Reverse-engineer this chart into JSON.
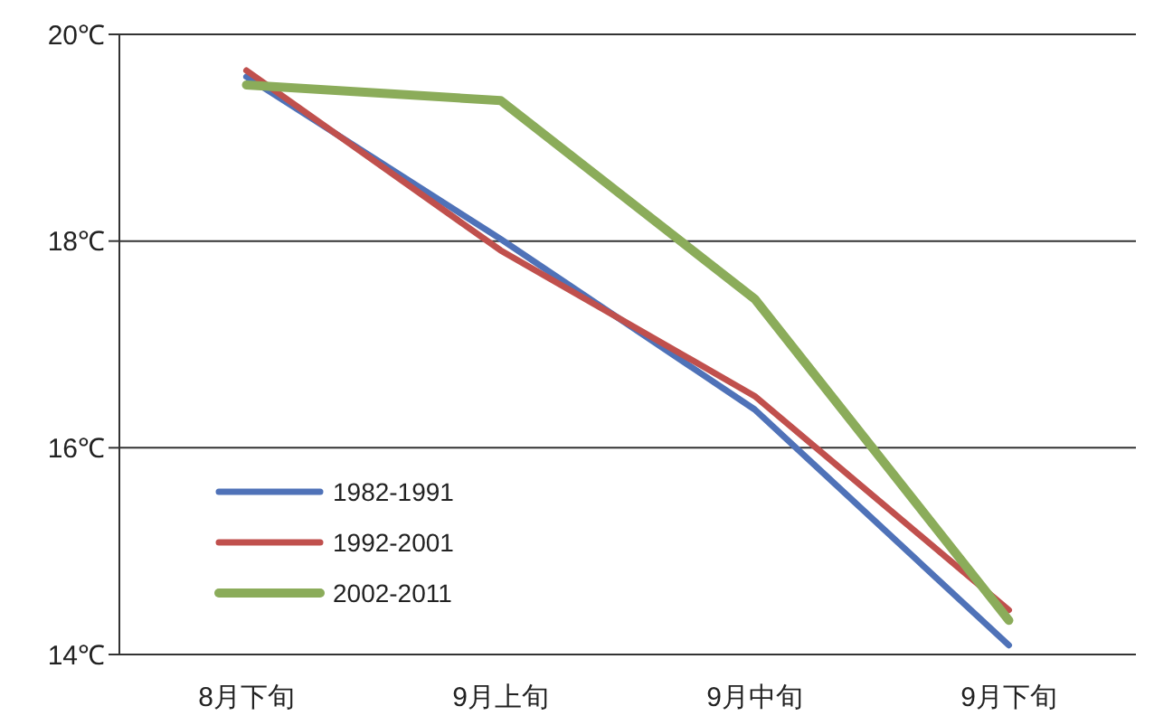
{
  "chart_data": {
    "type": "line",
    "categories": [
      "8月下旬",
      "9月上旬",
      "9月中旬",
      "9月下旬"
    ],
    "series": [
      {
        "name": "1982-1991",
        "color": "#4f72b8",
        "values": [
          19.59,
          18.02,
          16.37,
          14.09
        ]
      },
      {
        "name": "1992-2001",
        "color": "#c0504d",
        "values": [
          19.65,
          17.91,
          16.5,
          14.43
        ]
      },
      {
        "name": "2002-2011",
        "color": "#8bac5a",
        "values": [
          19.51,
          19.36,
          17.44,
          14.33
        ]
      }
    ],
    "ylim": [
      14,
      20
    ],
    "yticks": [
      {
        "value": 14,
        "label": "14℃"
      },
      {
        "value": 16,
        "label": "16℃"
      },
      {
        "value": 18,
        "label": "18℃"
      },
      {
        "value": 20,
        "label": "20℃"
      }
    ],
    "grid": "y",
    "legend": "bottom left",
    "marker": "none",
    "line_style": "solid"
  }
}
